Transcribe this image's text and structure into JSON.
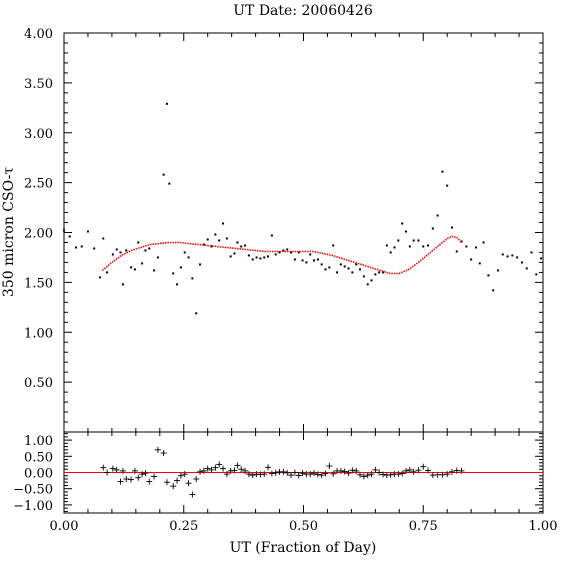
{
  "chart_data": [
    {
      "type": "scatter",
      "title": "UT Date: 20060426",
      "xlabel": "",
      "ylabel": "350 micron CSO-τ",
      "xlim": [
        0.0,
        1.0
      ],
      "ylim": [
        0.0,
        4.0
      ],
      "x_ticks": [],
      "y_ticks": [
        "0.50",
        "1.00",
        "1.50",
        "2.00",
        "2.50",
        "3.00",
        "3.50",
        "4.00"
      ],
      "grid": false,
      "legend": "none",
      "series": [
        {
          "marker": "dot",
          "color": "#000000",
          "x": [
            0.0,
            0.012,
            0.025,
            0.037,
            0.05,
            0.063,
            0.075,
            0.082,
            0.09,
            0.102,
            0.11,
            0.118,
            0.123,
            0.13,
            0.14,
            0.148,
            0.155,
            0.163,
            0.17,
            0.178,
            0.188,
            0.196,
            0.208,
            0.215,
            0.22,
            0.228,
            0.236,
            0.244,
            0.252,
            0.26,
            0.268,
            0.276,
            0.284,
            0.292,
            0.3,
            0.308,
            0.316,
            0.324,
            0.332,
            0.34,
            0.348,
            0.356,
            0.362,
            0.37,
            0.378,
            0.386,
            0.394,
            0.402,
            0.41,
            0.418,
            0.426,
            0.434,
            0.442,
            0.45,
            0.458,
            0.466,
            0.474,
            0.482,
            0.49,
            0.498,
            0.506,
            0.514,
            0.522,
            0.53,
            0.538,
            0.546,
            0.554,
            0.562,
            0.57,
            0.578,
            0.586,
            0.594,
            0.602,
            0.61,
            0.618,
            0.626,
            0.634,
            0.642,
            0.65,
            0.658,
            0.666,
            0.674,
            0.682,
            0.69,
            0.698,
            0.706,
            0.714,
            0.722,
            0.73,
            0.74,
            0.75,
            0.76,
            0.77,
            0.78,
            0.79,
            0.8,
            0.81,
            0.82,
            0.83,
            0.84,
            0.85,
            0.86,
            0.868,
            0.876,
            0.886,
            0.896,
            0.906,
            0.916,
            0.926,
            0.936,
            0.946,
            0.956,
            0.966,
            0.976,
            0.986,
            0.996
          ],
          "y": [
            2.02,
            1.96,
            1.85,
            1.86,
            2.01,
            1.84,
            1.55,
            1.94,
            1.6,
            1.78,
            1.83,
            1.8,
            1.48,
            1.82,
            1.65,
            1.63,
            1.9,
            1.69,
            1.82,
            1.84,
            1.62,
            1.75,
            2.58,
            3.29,
            2.49,
            1.59,
            1.48,
            1.65,
            1.8,
            1.75,
            1.54,
            1.19,
            1.68,
            1.88,
            1.93,
            1.86,
            1.98,
            1.92,
            2.09,
            1.94,
            1.76,
            1.79,
            1.9,
            1.86,
            1.87,
            1.77,
            1.73,
            1.75,
            1.74,
            1.75,
            1.76,
            1.97,
            1.78,
            1.8,
            1.82,
            1.83,
            1.8,
            1.73,
            1.8,
            1.72,
            1.7,
            1.78,
            1.72,
            1.73,
            1.68,
            1.63,
            1.65,
            1.87,
            1.6,
            1.68,
            1.66,
            1.64,
            1.6,
            1.68,
            1.63,
            1.56,
            1.48,
            1.52,
            1.58,
            1.6,
            1.6,
            1.87,
            1.8,
            1.85,
            1.92,
            2.09,
            2.01,
            1.86,
            1.92,
            1.92,
            1.86,
            1.87,
            2.04,
            2.17,
            2.61,
            2.47,
            2.05,
            1.81,
            1.91,
            1.86,
            1.73,
            1.85,
            1.69,
            1.9,
            1.57,
            1.42,
            1.62,
            1.78,
            1.76,
            1.77,
            1.75,
            1.7,
            1.64,
            1.8,
            1.58,
            1.74
          ]
        },
        {
          "marker": "line",
          "color": "#ff0000",
          "x": [
            0.08,
            0.1,
            0.12,
            0.14,
            0.16,
            0.18,
            0.2,
            0.22,
            0.24,
            0.26,
            0.28,
            0.3,
            0.32,
            0.34,
            0.36,
            0.38,
            0.4,
            0.42,
            0.44,
            0.46,
            0.48,
            0.5,
            0.52,
            0.54,
            0.56,
            0.58,
            0.6,
            0.62,
            0.64,
            0.66,
            0.68,
            0.7,
            0.72,
            0.74,
            0.76,
            0.78,
            0.8,
            0.81,
            0.82,
            0.83
          ],
          "y": [
            1.62,
            1.7,
            1.77,
            1.82,
            1.85,
            1.88,
            1.89,
            1.9,
            1.9,
            1.89,
            1.88,
            1.87,
            1.86,
            1.85,
            1.84,
            1.83,
            1.82,
            1.81,
            1.81,
            1.81,
            1.81,
            1.81,
            1.81,
            1.79,
            1.77,
            1.74,
            1.71,
            1.68,
            1.65,
            1.62,
            1.59,
            1.59,
            1.63,
            1.7,
            1.78,
            1.86,
            1.94,
            1.96,
            1.95,
            1.9
          ]
        }
      ]
    },
    {
      "type": "scatter",
      "title": "",
      "xlabel": "UT (Fraction of Day)",
      "ylabel": "",
      "xlim": [
        0.0,
        1.0
      ],
      "ylim": [
        -1.25,
        1.25
      ],
      "x_ticks": [
        "0.00",
        "0.25",
        "0.50",
        "0.75",
        "1.00"
      ],
      "y_ticks": [
        "1.00",
        "0.50",
        "0.00",
        "−0.50",
        "−1.00"
      ],
      "grid": false,
      "legend": "none",
      "series": [
        {
          "marker": "plus",
          "color": "#000000",
          "x": [
            0.082,
            0.09,
            0.102,
            0.11,
            0.118,
            0.123,
            0.13,
            0.14,
            0.148,
            0.155,
            0.163,
            0.17,
            0.178,
            0.188,
            0.196,
            0.208,
            0.215,
            0.228,
            0.236,
            0.244,
            0.252,
            0.26,
            0.268,
            0.276,
            0.284,
            0.292,
            0.3,
            0.308,
            0.316,
            0.324,
            0.332,
            0.34,
            0.348,
            0.356,
            0.362,
            0.37,
            0.378,
            0.386,
            0.394,
            0.402,
            0.41,
            0.418,
            0.426,
            0.434,
            0.442,
            0.45,
            0.458,
            0.466,
            0.474,
            0.482,
            0.49,
            0.498,
            0.506,
            0.514,
            0.522,
            0.53,
            0.538,
            0.546,
            0.554,
            0.562,
            0.57,
            0.578,
            0.586,
            0.594,
            0.602,
            0.61,
            0.618,
            0.626,
            0.634,
            0.642,
            0.65,
            0.658,
            0.666,
            0.674,
            0.682,
            0.69,
            0.698,
            0.706,
            0.714,
            0.722,
            0.73,
            0.74,
            0.75,
            0.76,
            0.77,
            0.78,
            0.79,
            0.8,
            0.81,
            0.82,
            0.83
          ],
          "y": [
            0.15,
            0.0,
            0.12,
            0.08,
            -0.28,
            0.05,
            -0.2,
            -0.22,
            0.05,
            -0.16,
            -0.05,
            -0.02,
            -0.28,
            -0.12,
            0.7,
            0.6,
            -0.3,
            -0.42,
            -0.25,
            -0.1,
            -0.05,
            -0.33,
            -0.68,
            -0.2,
            0.02,
            0.05,
            0.12,
            0.08,
            0.15,
            0.25,
            0.12,
            -0.05,
            0.05,
            0.06,
            0.22,
            0.1,
            0.05,
            -0.05,
            -0.08,
            -0.05,
            -0.06,
            -0.05,
            0.16,
            -0.03,
            -0.01,
            0.02,
            0.02,
            -0.01,
            -0.08,
            0.0,
            -0.09,
            -0.02,
            -0.05,
            -0.05,
            -0.02,
            -0.06,
            -0.08,
            -0.03,
            0.2,
            -0.04,
            0.05,
            0.05,
            0.03,
            -0.02,
            0.07,
            0.05,
            -0.07,
            -0.12,
            -0.08,
            -0.05,
            0.08,
            0.0,
            -0.06,
            -0.08,
            -0.07,
            -0.05,
            -0.05,
            -0.03,
            0.05,
            0.08,
            0.02,
            0.07,
            0.18,
            0.06,
            -0.08,
            -0.07,
            -0.07,
            -0.05,
            0.02,
            0.06,
            0.05
          ]
        },
        {
          "marker": "hline",
          "color": "#ff0000",
          "y": [
            0.0
          ]
        }
      ]
    }
  ]
}
